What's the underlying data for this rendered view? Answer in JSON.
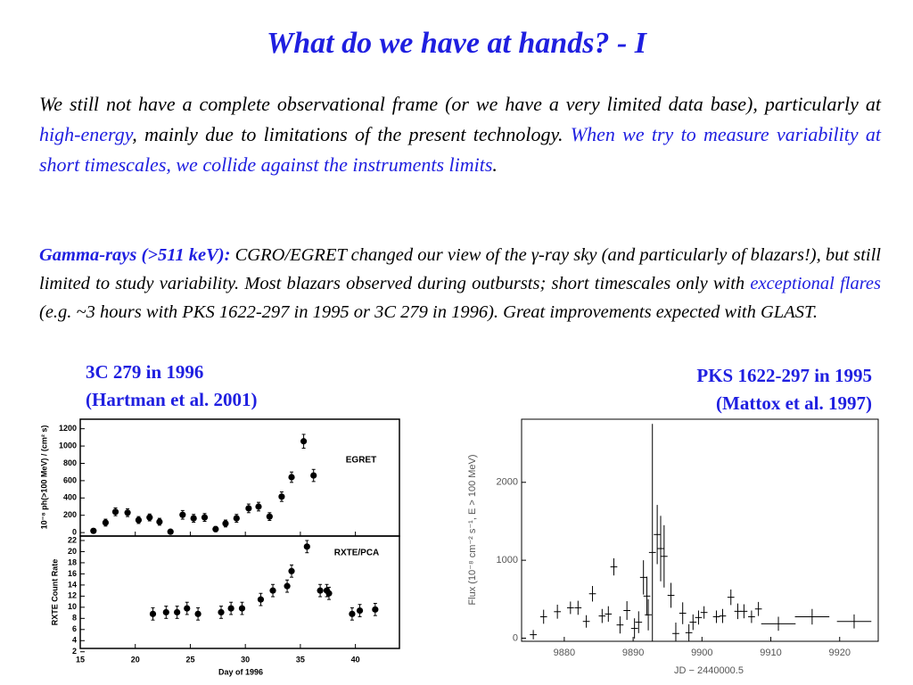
{
  "title": "What do we have at hands? - I",
  "paragraphs": [
    {
      "segments": [
        "We still not have a complete observational frame (or we have a very limited data base), particularly at ",
        "high-energy",
        ", mainly due to limitations of the present technology. ",
        "When we try to measure variability at short timescales, we collide against the instruments limits",
        "."
      ]
    },
    {
      "segments": [
        "Gamma-rays (>511 keV):",
        " CGRO/EGRET changed our view of the γ-ray sky (and particularly of blazars!), but still limited to study variability. Most blazars observed during outbursts; short timescales only with ",
        "exceptional flares",
        " (e.g. ~3 hours with PKS 1622-297 in 1995 or 3C 279 in 1996). Great improvements expected with GLAST."
      ]
    }
  ],
  "figures": [
    {
      "caption": [
        "3C 279 in 1996",
        "(Hartman et al. 2001)"
      ]
    },
    {
      "caption": [
        "PKS 1622-297 in 1995",
        "(Mattox et al. 1997)"
      ]
    }
  ],
  "chart_data": [
    {
      "type": "scatter",
      "marker": "circle",
      "color": "#000000",
      "annotation": "EGRET",
      "ylabel": "10⁻⁸ ph(>100 MeV) / (cm² s)",
      "x": [
        16.2,
        17.3,
        18.2,
        19.3,
        20.3,
        21.3,
        22.2,
        23.2,
        24.3,
        25.3,
        26.3,
        27.3,
        28.2,
        29.2,
        30.3,
        31.2,
        32.2,
        33.3,
        34.2,
        35.3,
        36.2
      ],
      "values": [
        20,
        115,
        240,
        230,
        145,
        175,
        125,
        10,
        205,
        165,
        175,
        40,
        105,
        165,
        280,
        300,
        185,
        415,
        640,
        1055,
        660
      ],
      "errors": [
        25,
        40,
        45,
        45,
        40,
        40,
        40,
        20,
        50,
        45,
        45,
        30,
        40,
        45,
        50,
        50,
        45,
        55,
        60,
        80,
        70
      ],
      "xlim": [
        15,
        44
      ],
      "ylim": [
        -40,
        1310
      ],
      "yticks": [
        0,
        200,
        400,
        600,
        800,
        1000,
        1200
      ]
    },
    {
      "type": "scatter",
      "marker": "circle",
      "color": "#000000",
      "annotation": "RXTE/PCA",
      "ylabel": "RXTE Count Rate",
      "xlabel": "Day of 1996",
      "x": [
        21.6,
        22.8,
        23.8,
        24.7,
        25.7,
        27.8,
        28.7,
        29.7,
        31.4,
        32.5,
        33.8,
        34.2,
        35.6,
        36.8,
        37.4,
        37.6,
        39.7,
        40.4,
        41.8
      ],
      "values": [
        8.8,
        9.1,
        9.1,
        9.8,
        8.8,
        9.1,
        9.8,
        9.8,
        11.4,
        13,
        13.8,
        16.5,
        20.9,
        13,
        13,
        12.5,
        8.8,
        9.4,
        9.6
      ],
      "errors": [
        1.1,
        1.1,
        1.1,
        1.1,
        1.1,
        1.1,
        1.1,
        1.1,
        1.1,
        1.1,
        1.1,
        1.1,
        1.1,
        1.1,
        1.1,
        1.1,
        1.1,
        1.1,
        1.1
      ],
      "xlim": [
        15,
        44
      ],
      "ylim": [
        2.6,
        22.8
      ],
      "xticks": [
        15,
        20,
        25,
        30,
        35,
        40
      ],
      "yticks": [
        2,
        4,
        6,
        8,
        10,
        12,
        14,
        16,
        18,
        20,
        22
      ]
    },
    {
      "type": "scatter",
      "marker": "none",
      "color": "#000000",
      "ylabel": "Flux (10⁻⁸ cm⁻² s⁻¹, E > 100 MeV)",
      "xlabel": "JD − 2440000.5",
      "x": [
        9875.5,
        9877.0,
        9879.0,
        9880.9,
        9882.0,
        9883.2,
        9884.1,
        9885.5,
        9886.4,
        9887.2,
        9888.1,
        9889.1,
        9890.2,
        9890.8,
        9891.5,
        9892.0,
        9892.2,
        9892.8,
        9893.5,
        9894.0,
        9894.5,
        9895.5,
        9896.2,
        9897.2,
        9898.1,
        9898.7,
        9899.5,
        9900.3,
        9902.1,
        9903.0,
        9904.2,
        9905.2,
        9906.1,
        9907.2,
        9908.2,
        9911.1,
        9916.0,
        9922.1
      ],
      "values": [
        45,
        275,
        340,
        390,
        390,
        215,
        570,
        285,
        310,
        915,
        170,
        355,
        125,
        205,
        780,
        540,
        300,
        1100,
        1330,
        1150,
        1050,
        550,
        60,
        320,
        70,
        205,
        265,
        330,
        275,
        285,
        525,
        345,
        345,
        275,
        375,
        185,
        275,
        215
      ],
      "errors": [
        60,
        90,
        90,
        80,
        90,
        80,
        100,
        90,
        100,
        110,
        110,
        120,
        130,
        140,
        220,
        250,
        200,
        1650,
        380,
        420,
        400,
        160,
        140,
        140,
        110,
        100,
        90,
        80,
        80,
        90,
        100,
        100,
        90,
        80,
        90,
        90,
        100,
        90
      ],
      "xerr": [
        0.5,
        0.5,
        0.5,
        0.5,
        0.5,
        0.5,
        0.5,
        0.5,
        0.5,
        0.5,
        0.5,
        0.5,
        0.5,
        0.5,
        0.5,
        0.5,
        0.5,
        0.5,
        0.5,
        0.5,
        0.5,
        0.5,
        0.5,
        0.5,
        0.5,
        0.5,
        0.5,
        0.5,
        0.5,
        0.5,
        0.5,
        0.5,
        0.5,
        0.5,
        0.5,
        2.5,
        2.5,
        2.5
      ],
      "xlim": [
        9873.8,
        9925.6
      ],
      "ylim": [
        -40,
        2810
      ],
      "xticks": [
        9880,
        9890,
        9900,
        9910,
        9920
      ],
      "yticks": [
        0,
        1000,
        2000
      ]
    }
  ]
}
